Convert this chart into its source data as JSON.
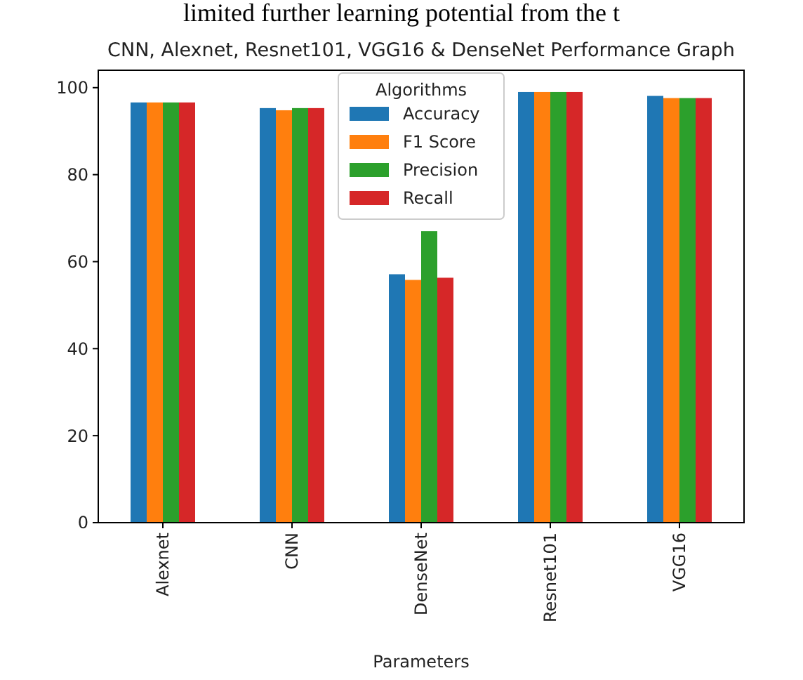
{
  "chart_data": {
    "type": "bar",
    "title": "CNN, Alexnet, Resnet101, VGG16 & DenseNet Performance Graph",
    "annotations": [
      "limited further learning potential from the t"
    ],
    "xlabel": "Parameters",
    "legend_title": "Algorithms",
    "legend": "top",
    "categories": [
      "Alexnet",
      "CNN",
      "DenseNet",
      "Resnet101",
      "VGG16"
    ],
    "series": [
      {
        "name": "Accuracy",
        "color": "#1f77b4",
        "values": [
          96.6,
          95.3,
          57.1,
          99.0,
          98.1
        ]
      },
      {
        "name": "F1 Score",
        "color": "#ff7f0e",
        "values": [
          96.6,
          94.8,
          55.8,
          99.0,
          97.6
        ]
      },
      {
        "name": "Precision",
        "color": "#2ca02c",
        "values": [
          96.6,
          95.3,
          67,
          99.0,
          97.6
        ]
      },
      {
        "name": "Recall",
        "color": "#d62728",
        "values": [
          96.6,
          95.3,
          56.3,
          99.0,
          97.6
        ]
      }
    ],
    "ylim": [
      0,
      104
    ],
    "yticks": [
      0,
      20,
      40,
      60,
      80,
      100
    ],
    "grid": false
  }
}
